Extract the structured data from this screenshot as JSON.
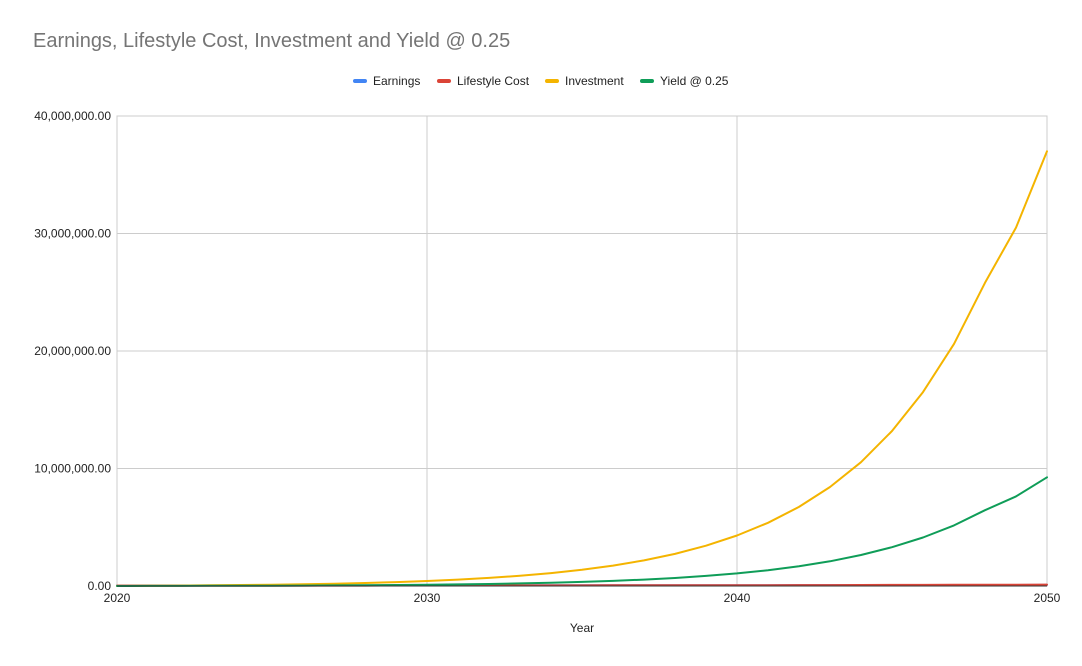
{
  "chart_data": {
    "type": "line",
    "title": "Earnings, Lifestyle Cost, Investment and Yield @ 0.25",
    "xlabel": "Year",
    "ylabel": "",
    "xlim": [
      2020,
      2050
    ],
    "ylim": [
      0,
      40000000
    ],
    "x_ticks": [
      "2020",
      "2030",
      "2040",
      "2050"
    ],
    "y_ticks": [
      "0.00",
      "10,000,000.00",
      "20,000,000.00",
      "30,000,000.00",
      "40,000,000.00"
    ],
    "grid": true,
    "legend_position": "top",
    "x": [
      2020,
      2021,
      2022,
      2023,
      2024,
      2025,
      2026,
      2027,
      2028,
      2029,
      2030,
      2031,
      2032,
      2033,
      2034,
      2035,
      2036,
      2037,
      2038,
      2039,
      2040,
      2041,
      2042,
      2043,
      2044,
      2045,
      2046,
      2047,
      2048,
      2049,
      2050
    ],
    "series": [
      {
        "name": "Earnings",
        "color": "#4285f4",
        "values": [
          40000,
          41000,
          42000,
          43000,
          44000,
          45000,
          46000,
          47000,
          48000,
          49000,
          50000,
          52000,
          54000,
          56000,
          58000,
          60000,
          62000,
          64000,
          66000,
          68000,
          70000,
          72000,
          74000,
          76000,
          78000,
          80000,
          82000,
          84000,
          86000,
          88000,
          90000
        ]
      },
      {
        "name": "Lifestyle Cost",
        "color": "#db4437",
        "values": [
          30000,
          31000,
          32000,
          33000,
          34000,
          35000,
          36000,
          37000,
          38000,
          40000,
          42000,
          44000,
          46000,
          48000,
          50000,
          53000,
          56000,
          59000,
          62000,
          65000,
          68000,
          72000,
          76000,
          80000,
          85000,
          90000,
          95000,
          100000,
          105000,
          110000,
          115000
        ]
      },
      {
        "name": "Investment",
        "color": "#f4b400",
        "values": [
          10000,
          22500,
          38100,
          57600,
          82000,
          112500,
          150600,
          198300,
          257900,
          332400,
          425500,
          541900,
          687400,
          869300,
          1096600,
          1380800,
          1736000,
          2180000,
          2735000,
          3429000,
          4295000,
          5378000,
          6733000,
          8425000,
          10540000,
          13190000,
          16500000,
          20600000,
          25800000,
          30500000,
          37000000
        ]
      },
      {
        "name": "Yield @ 0.25",
        "color": "#0f9d58",
        "values": [
          2500,
          5600,
          9500,
          14400,
          20500,
          28100,
          37700,
          49600,
          64500,
          83100,
          106400,
          135500,
          171900,
          217300,
          274200,
          345200,
          434000,
          545000,
          684000,
          857000,
          1074000,
          1345000,
          1683000,
          2106000,
          2635000,
          3298000,
          4125000,
          5160000,
          6450000,
          7625000,
          9250000
        ]
      }
    ]
  }
}
